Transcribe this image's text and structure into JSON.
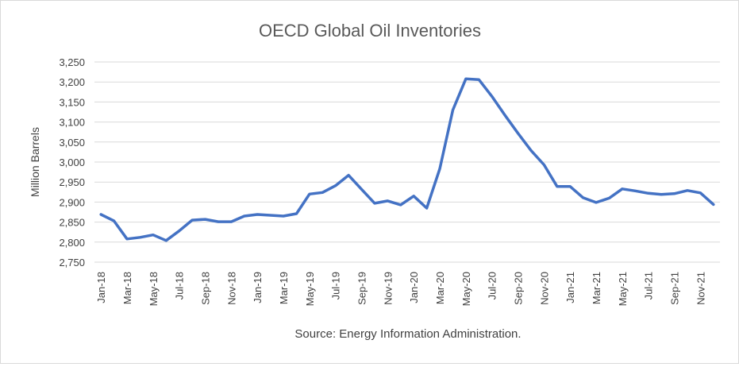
{
  "chart_data": {
    "type": "line",
    "title": "OECD Global Oil Inventories",
    "xlabel": "",
    "ylabel": "Million Barrels",
    "source_note": "Source: Energy Information Administration.",
    "ylim": [
      2750,
      3250
    ],
    "yticks": [
      "2,750",
      "2,800",
      "2,850",
      "2,900",
      "2,950",
      "3,000",
      "3,050",
      "3,100",
      "3,150",
      "3,200",
      "3,250"
    ],
    "grid": true,
    "legend": "none",
    "line_color": "#4472C4",
    "x": [
      "Jan-18",
      "Feb-18",
      "Mar-18",
      "Apr-18",
      "May-18",
      "Jun-18",
      "Jul-18",
      "Aug-18",
      "Sep-18",
      "Oct-18",
      "Nov-18",
      "Dec-18",
      "Jan-19",
      "Feb-19",
      "Mar-19",
      "Apr-19",
      "May-19",
      "Jun-19",
      "Jul-19",
      "Aug-19",
      "Sep-19",
      "Oct-19",
      "Nov-19",
      "Dec-19",
      "Jan-20",
      "Feb-20",
      "Mar-20",
      "Apr-20",
      "May-20",
      "Jun-20",
      "Jul-20",
      "Aug-20",
      "Sep-20",
      "Oct-20",
      "Nov-20",
      "Dec-20",
      "Jan-21",
      "Feb-21",
      "Mar-21",
      "Apr-21",
      "May-21",
      "Jun-21",
      "Jul-21",
      "Aug-21",
      "Sep-21",
      "Oct-21",
      "Nov-21",
      "Dec-21"
    ],
    "tick_labels": [
      "Jan-18",
      "Mar-18",
      "May-18",
      "Jul-18",
      "Sep-18",
      "Nov-18",
      "Jan-19",
      "Mar-19",
      "May-19",
      "Jul-19",
      "Sep-19",
      "Nov-19",
      "Jan-20",
      "Mar-20",
      "May-20",
      "Jul-20",
      "Sep-20",
      "Nov-20",
      "Jan-21",
      "Mar-21",
      "May-21",
      "Jul-21",
      "Sep-21",
      "Nov-21"
    ],
    "series": [
      {
        "values": [
          2869,
          2853,
          2808,
          2812,
          2818,
          2804,
          2828,
          2855,
          2857,
          2851,
          2851,
          2865,
          2869,
          2867,
          2865,
          2871,
          2920,
          2924,
          2941,
          2967,
          2932,
          2897,
          2903,
          2893,
          2915,
          2885,
          2983,
          3130,
          3208,
          3206,
          3164,
          3117,
          3072,
          3029,
          2993,
          2939,
          2939,
          2911,
          2899,
          2910,
          2933,
          2928,
          2922,
          2919,
          2921,
          2929,
          2923,
          2894
        ]
      }
    ]
  }
}
